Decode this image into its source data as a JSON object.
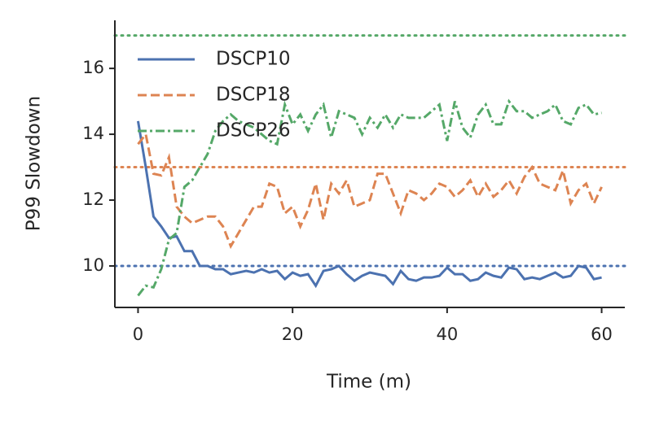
{
  "chart_data": {
    "type": "line",
    "xlabel": "Time (m)",
    "ylabel": "P99 Slowdown",
    "x": [
      0,
      1,
      2,
      3,
      4,
      5,
      6,
      7,
      8,
      9,
      10,
      11,
      12,
      13,
      14,
      15,
      16,
      17,
      18,
      19,
      20,
      21,
      22,
      23,
      24,
      25,
      26,
      27,
      28,
      29,
      30,
      31,
      32,
      33,
      34,
      35,
      36,
      37,
      38,
      39,
      40,
      41,
      42,
      43,
      44,
      45,
      46,
      47,
      48,
      49,
      50,
      51,
      52,
      53,
      54,
      55,
      56,
      57,
      58,
      59,
      60
    ],
    "series": [
      {
        "name": "DSCP10",
        "color": "#4c72b0",
        "dash": "solid",
        "values": [
          14.4,
          13.0,
          11.5,
          11.2,
          10.85,
          10.9,
          10.45,
          10.45,
          10.0,
          10.0,
          9.9,
          9.9,
          9.75,
          9.8,
          9.85,
          9.8,
          9.9,
          9.8,
          9.85,
          9.6,
          9.8,
          9.7,
          9.75,
          9.4,
          9.85,
          9.9,
          10.0,
          9.75,
          9.55,
          9.7,
          9.8,
          9.75,
          9.7,
          9.45,
          9.85,
          9.6,
          9.55,
          9.65,
          9.65,
          9.7,
          9.95,
          9.75,
          9.75,
          9.55,
          9.6,
          9.8,
          9.7,
          9.65,
          9.95,
          9.9,
          9.6,
          9.65,
          9.6,
          9.7,
          9.8,
          9.65,
          9.7,
          10.0,
          9.95,
          9.6,
          9.65
        ]
      },
      {
        "name": "DSCP18",
        "color": "#dd8452",
        "dash": "dashed",
        "values": [
          13.7,
          14.0,
          12.8,
          12.75,
          13.3,
          11.8,
          11.5,
          11.3,
          11.4,
          11.5,
          11.5,
          11.2,
          10.6,
          11.0,
          11.4,
          11.8,
          11.8,
          12.5,
          12.4,
          11.6,
          11.8,
          11.2,
          11.7,
          12.5,
          11.4,
          12.5,
          12.2,
          12.6,
          11.8,
          11.9,
          12.0,
          12.8,
          12.8,
          12.2,
          11.6,
          12.3,
          12.2,
          12.0,
          12.2,
          12.5,
          12.4,
          12.1,
          12.3,
          12.6,
          12.1,
          12.5,
          12.1,
          12.3,
          12.6,
          12.2,
          12.7,
          13.0,
          12.5,
          12.4,
          12.3,
          12.9,
          11.9,
          12.3,
          12.5,
          11.9,
          12.4
        ]
      },
      {
        "name": "DSCP26",
        "color": "#55a868",
        "dash": "dashdot",
        "values": [
          9.1,
          9.4,
          9.35,
          9.9,
          10.8,
          11.0,
          12.4,
          12.6,
          13.0,
          13.4,
          14.1,
          14.4,
          14.6,
          14.4,
          14.3,
          14.2,
          14.0,
          13.8,
          13.7,
          14.9,
          14.3,
          14.6,
          14.1,
          14.6,
          14.9,
          13.9,
          14.7,
          14.6,
          14.5,
          14.0,
          14.5,
          14.2,
          14.6,
          14.2,
          14.6,
          14.5,
          14.5,
          14.5,
          14.7,
          14.9,
          13.8,
          15.0,
          14.2,
          13.9,
          14.6,
          14.9,
          14.3,
          14.3,
          15.0,
          14.7,
          14.7,
          14.5,
          14.6,
          14.7,
          14.9,
          14.4,
          14.3,
          14.8,
          14.9,
          14.6,
          14.65
        ]
      }
    ],
    "hlines": [
      {
        "value": 10,
        "color": "#4c72b0"
      },
      {
        "value": 13,
        "color": "#dd8452"
      },
      {
        "value": 17,
        "color": "#55a868"
      }
    ],
    "xlim": [
      -3,
      63
    ],
    "ylim": [
      8.74,
      17.46
    ],
    "xticks": [
      0,
      20,
      40,
      60
    ],
    "yticks": [
      10,
      12,
      14,
      16
    ],
    "grid": false,
    "legend": "upper left"
  }
}
